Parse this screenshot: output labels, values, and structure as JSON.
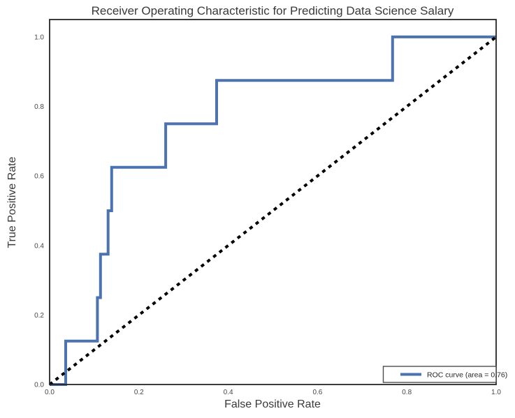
{
  "chart_data": {
    "type": "line",
    "subtype": "roc-step-curve",
    "title": "Receiver Operating Characteristic for Predicting Data Science Salary",
    "xlabel": "False Positive Rate",
    "ylabel": "True Positive Rate",
    "xlim": [
      0.0,
      1.0
    ],
    "ylim": [
      0.0,
      1.05
    ],
    "grid": false,
    "x_ticks": [
      "0.0",
      "0.2",
      "0.4",
      "0.6",
      "0.8",
      "1.0"
    ],
    "y_ticks": [
      "0.0",
      "0.2",
      "0.4",
      "0.6",
      "0.8",
      "1.0"
    ],
    "auc": 0.76,
    "series": [
      {
        "name": "ROC curve",
        "slug": "roc-curve-line",
        "color": "#4C72B0",
        "linewidth": 4,
        "dash": "",
        "points": [
          [
            0.0,
            0.0
          ],
          [
            0.036,
            0.0
          ],
          [
            0.036,
            0.125
          ],
          [
            0.107,
            0.125
          ],
          [
            0.107,
            0.25
          ],
          [
            0.114,
            0.25
          ],
          [
            0.114,
            0.375
          ],
          [
            0.131,
            0.375
          ],
          [
            0.131,
            0.5
          ],
          [
            0.139,
            0.5
          ],
          [
            0.139,
            0.625
          ],
          [
            0.26,
            0.625
          ],
          [
            0.26,
            0.75
          ],
          [
            0.374,
            0.75
          ],
          [
            0.374,
            0.875
          ],
          [
            0.768,
            0.875
          ],
          [
            0.768,
            1.0
          ],
          [
            1.0,
            1.0
          ]
        ]
      },
      {
        "name": "Chance diagonal",
        "slug": "chance-diagonal-line",
        "color": "#000000",
        "linewidth": 4,
        "dash": "5 6",
        "points": [
          [
            0.0,
            0.0
          ],
          [
            1.0,
            1.0
          ]
        ]
      }
    ],
    "legend": {
      "position": "lower right",
      "entries": [
        {
          "label": "ROC curve (area = 0.76)",
          "color": "#4C72B0"
        }
      ]
    }
  },
  "colors": {
    "roc_line": "#4C72B0",
    "diagonal": "#000000",
    "spine": "#262626",
    "background": "#ffffff",
    "text": "#3a3a3a"
  }
}
